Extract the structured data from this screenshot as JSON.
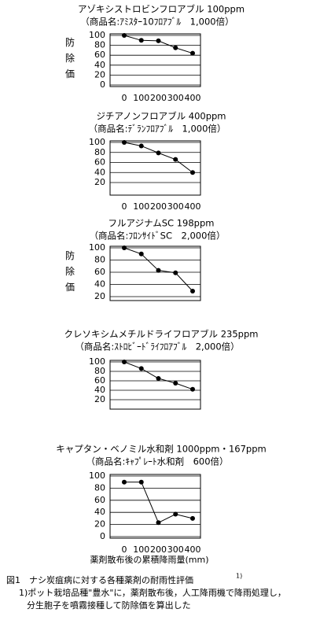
{
  "chart_data": [
    {
      "type": "line",
      "title": "アゾキシストロビンフロアブル 100ppm",
      "subtitle": "（商品名:ｱﾐｽﾀｰ10ﾌﾛｱﾌﾞﾙ　1,000倍）",
      "y_label": "防除価",
      "x": [
        0,
        100,
        200,
        300,
        400
      ],
      "xlim": [
        0,
        400
      ],
      "xticks": [
        0,
        100,
        200,
        300,
        400
      ],
      "ylim": [
        0,
        100
      ],
      "yticks": [
        0,
        20,
        40,
        60,
        80,
        100
      ],
      "grid": true,
      "color": "#000000",
      "values": [
        100,
        90,
        89,
        75,
        64
      ]
    },
    {
      "type": "line",
      "title": "ジチアノンフロアブル 400ppm",
      "subtitle": "（商品名:ﾃﾞﾗﾝﾌﾛｱﾌﾞﾙ　1,000倍）",
      "x": [
        0,
        100,
        200,
        300,
        400
      ],
      "xlim": [
        0,
        400
      ],
      "xticks": [
        0,
        100,
        200,
        300,
        400
      ],
      "ylim": [
        20,
        100
      ],
      "yticks": [
        20,
        40,
        60,
        80,
        100
      ],
      "grid": true,
      "color": "#000000",
      "values": [
        100,
        93,
        79,
        66,
        40
      ]
    },
    {
      "type": "line",
      "title": "フルアジナムSC 198ppm",
      "subtitle": "（商品名:ﾌﾛﾝｻｲﾄﾞSC　2,000倍）",
      "y_label": "防除価",
      "x": [
        0,
        100,
        200,
        300,
        400
      ],
      "xlim": [
        0,
        400
      ],
      "ylim": [
        20,
        100
      ],
      "yticks": [
        20,
        40,
        60,
        80,
        100
      ],
      "grid": true,
      "color": "#000000",
      "values": [
        100,
        90,
        63,
        59,
        29
      ]
    },
    {
      "type": "line",
      "title": "クレソキシムメチルドライフロアブル 235ppm",
      "subtitle": "（商品名:ｽﾄﾛﾋﾞｰﾄﾞﾗｲﾌﾛｱﾌﾞﾙ　2,000倍）",
      "x": [
        0,
        100,
        200,
        300,
        400
      ],
      "xlim": [
        0,
        400
      ],
      "ylim": [
        20,
        100
      ],
      "yticks": [
        20,
        40,
        60,
        80,
        100
      ],
      "grid": true,
      "color": "#000000",
      "values": [
        100,
        86,
        65,
        55,
        42
      ]
    },
    {
      "type": "line",
      "title": "キャプタン・ベノミル水和剤 1000ppm・167ppm",
      "subtitle": "（商品名:ｷｬﾌﾟﾚｰﾄ水和剤　600倍）",
      "x": [
        0,
        100,
        200,
        300,
        400
      ],
      "xlim": [
        0,
        400
      ],
      "xticks": [
        0,
        100,
        200,
        300,
        400
      ],
      "ylim": [
        0,
        100
      ],
      "yticks": [
        0,
        20,
        40,
        60,
        80,
        100
      ],
      "grid": true,
      "color": "#000000",
      "values": [
        90,
        90,
        23,
        37,
        30
      ]
    }
  ],
  "x_label": "薬剤散布後の累積降雨量(mm)",
  "caption": {
    "title": "図1　ナシ炭疽病に対する各種薬剤の耐雨性評価",
    "sup": "1)",
    "notes": [
      "1)ポット栽培品種\"豊水\"に，薬剤散布後，人工降雨機で降雨処理し，",
      "分生胞子を噴霧接種して防除価を算出した"
    ]
  }
}
